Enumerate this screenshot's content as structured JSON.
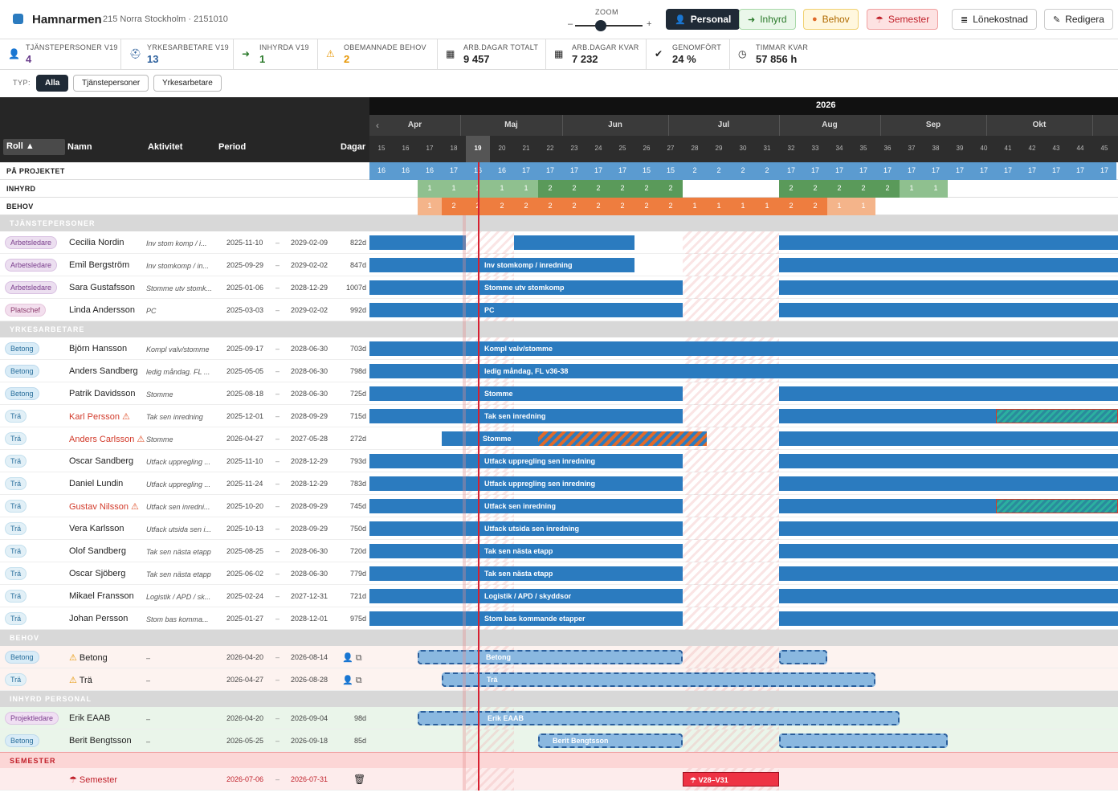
{
  "app": {
    "title": "Hamnarmen",
    "subtitle": "215 Norra Stockholm · 2151010"
  },
  "zoom": {
    "label": "ZOOM",
    "minus": "–",
    "plus": "+"
  },
  "toolbar": {
    "personal": "Personal",
    "inhyrd": "Inhyrd",
    "behov": "Behov",
    "semester": "Semester",
    "lonekostnad": "Lönekostnad",
    "redigera": "Redigera"
  },
  "stats": [
    {
      "label": "TJÄNSTEPERSONER V19",
      "value": "4",
      "icon": "person-icon"
    },
    {
      "label": "YRKESARBETARE V19",
      "value": "13",
      "icon": "hardhat-icon"
    },
    {
      "label": "INHYRDA V19",
      "value": "1",
      "icon": "sign-in-icon"
    },
    {
      "label": "OBEMANNADE BEHOV",
      "value": "2",
      "icon": "warning-icon"
    },
    {
      "label": "ARB.DAGAR TOTALT",
      "value": "9 457",
      "icon": "calendar-icon"
    },
    {
      "label": "ARB.DAGAR KVAR",
      "value": "7 232",
      "icon": "calendar-icon"
    },
    {
      "label": "GENOMFÖRT",
      "value": "24 %",
      "icon": "check-circle-icon"
    },
    {
      "label": "TIMMAR KVAR",
      "value": "57 856 h",
      "icon": "clock-icon"
    }
  ],
  "filter": {
    "label": "TYP:",
    "options": [
      "Alla",
      "Tjänstepersoner",
      "Yrkesarbetare"
    ],
    "active": "Alla"
  },
  "columns": {
    "roll": "Roll ▲",
    "namn": "Namn",
    "aktivitet": "Aktivitet",
    "period": "Period",
    "dagar": "Dagar"
  },
  "year": "2026",
  "months": [
    "Apr",
    "Maj",
    "Jun",
    "Jul",
    "Aug",
    "Sep",
    "Okt"
  ],
  "weeks": [
    "15",
    "16",
    "17",
    "18",
    "19",
    "20",
    "21",
    "22",
    "23",
    "24",
    "25",
    "26",
    "27",
    "28",
    "29",
    "30",
    "31",
    "32",
    "33",
    "34",
    "35",
    "36",
    "37",
    "38",
    "39",
    "40",
    "41",
    "42",
    "43",
    "44",
    "45"
  ],
  "current_week": "19",
  "summary": {
    "pa_projektet": {
      "label": "PÅ PROJEKTET",
      "values": [
        "16",
        "16",
        "16",
        "17",
        "16",
        "16",
        "17",
        "17",
        "17",
        "17",
        "17",
        "15",
        "15",
        "2",
        "2",
        "2",
        "2",
        "17",
        "17",
        "17",
        "17",
        "17",
        "17",
        "17",
        "17",
        "17",
        "17",
        "17",
        "17",
        "17",
        "17"
      ]
    },
    "inhyrd": {
      "label": "INHYRD",
      "values": [
        "",
        "",
        "1",
        "1",
        "1",
        "1",
        "1",
        "2",
        "2",
        "2",
        "2",
        "2",
        "2",
        "",
        "",
        "",
        "",
        "2",
        "2",
        "2",
        "2",
        "2",
        "1",
        "1",
        "",
        "",
        "",
        "",
        "",
        "",
        ""
      ]
    },
    "behov": {
      "label": "BEHOV",
      "values": [
        "",
        "",
        "1",
        "2",
        "2",
        "2",
        "2",
        "2",
        "2",
        "2",
        "2",
        "2",
        "2",
        "1",
        "1",
        "1",
        "1",
        "2",
        "2",
        "1",
        "1",
        "",
        "",
        "",
        "",
        "",
        "",
        "",
        "",
        "",
        ""
      ]
    }
  },
  "sections": {
    "tjanstepersoner": "TJÄNSTEPERSONER",
    "yrkesarbetare": "YRKESARBETARE",
    "behov": "BEHOV",
    "inhyrd": "INHYRD PERSONAL",
    "semester": "SEMESTER"
  },
  "tjanstepersoner": [
    {
      "roll": "Arbetsledare",
      "namn": "Cecilia Nordin",
      "aktivitet": "Inv stom komp / i...",
      "start": "2025-11-10",
      "end": "2029-02-09",
      "dagar": "822d",
      "bar_label": ""
    },
    {
      "roll": "Arbetsledare",
      "namn": "Emil Bergström",
      "aktivitet": "Inv stomkomp / in...",
      "start": "2025-09-29",
      "end": "2029-02-02",
      "dagar": "847d",
      "bar_label": "Inv stomkomp / inredning"
    },
    {
      "roll": "Arbetsledare",
      "namn": "Sara Gustafsson",
      "aktivitet": "Stomme utv stomk...",
      "start": "2025-01-06",
      "end": "2028-12-29",
      "dagar": "1007d",
      "bar_label": "Stomme utv stomkomp"
    },
    {
      "roll": "Platschef",
      "namn": "Linda Andersson",
      "aktivitet": "PC",
      "start": "2025-03-03",
      "end": "2029-02-02",
      "dagar": "992d",
      "bar_label": "PC"
    }
  ],
  "yrkesarbetare": [
    {
      "roll": "Betong",
      "namn": "Björn Hansson",
      "aktivitet": "Kompl valv/stomme",
      "start": "2025-09-17",
      "end": "2028-06-30",
      "dagar": "703d",
      "bar_label": "Kompl valv/stomme"
    },
    {
      "roll": "Betong",
      "namn": "Anders Sandberg",
      "aktivitet": "ledig måndag. FL ...",
      "start": "2025-05-05",
      "end": "2028-06-30",
      "dagar": "798d",
      "bar_label": "ledig måndag, FL v36-38"
    },
    {
      "roll": "Betong",
      "namn": "Patrik Davidsson",
      "aktivitet": "Stomme",
      "start": "2025-08-18",
      "end": "2028-06-30",
      "dagar": "725d",
      "bar_label": "Stomme"
    },
    {
      "roll": "Trä",
      "namn": "Karl Persson",
      "aktivitet": "Tak sen inredning",
      "start": "2025-12-01",
      "end": "2028-09-29",
      "dagar": "715d",
      "bar_label": "Tak sen inredning",
      "warn": true
    },
    {
      "roll": "Trä",
      "namn": "Anders Carlsson",
      "aktivitet": "Stomme",
      "start": "2026-04-27",
      "end": "2027-05-28",
      "dagar": "272d",
      "bar_label": "Stomme",
      "warn": true
    },
    {
      "roll": "Trä",
      "namn": "Oscar Sandberg",
      "aktivitet": "Utfack uppregling ...",
      "start": "2025-11-10",
      "end": "2028-12-29",
      "dagar": "793d",
      "bar_label": "Utfack uppregling sen inredning"
    },
    {
      "roll": "Trä",
      "namn": "Daniel Lundin",
      "aktivitet": "Utfack uppregling ...",
      "start": "2025-11-24",
      "end": "2028-12-29",
      "dagar": "783d",
      "bar_label": "Utfack uppregling sen inredning"
    },
    {
      "roll": "Trä",
      "namn": "Gustav Nilsson",
      "aktivitet": "Utfack sen inredni...",
      "start": "2025-10-20",
      "end": "2028-09-29",
      "dagar": "745d",
      "bar_label": "Utfack sen inredning",
      "warn": true
    },
    {
      "roll": "Trä",
      "namn": "Vera Karlsson",
      "aktivitet": "Utfack utsida sen i...",
      "start": "2025-10-13",
      "end": "2028-09-29",
      "dagar": "750d",
      "bar_label": "Utfack utsida sen inredning"
    },
    {
      "roll": "Trä",
      "namn": "Olof Sandberg",
      "aktivitet": "Tak sen nästa etapp",
      "start": "2025-08-25",
      "end": "2028-06-30",
      "dagar": "720d",
      "bar_label": "Tak sen nästa etapp"
    },
    {
      "roll": "Trä",
      "namn": "Oscar Sjöberg",
      "aktivitet": "Tak sen nästa etapp",
      "start": "2025-06-02",
      "end": "2028-06-30",
      "dagar": "779d",
      "bar_label": "Tak sen nästa etapp"
    },
    {
      "roll": "Trä",
      "namn": "Mikael Fransson",
      "aktivitet": "Logistik / APD / sk...",
      "start": "2025-02-24",
      "end": "2027-12-31",
      "dagar": "721d",
      "bar_label": "Logistik / APD / skyddsor"
    },
    {
      "roll": "Trä",
      "namn": "Johan Persson",
      "aktivitet": "Stom bas komma...",
      "start": "2025-01-27",
      "end": "2028-12-01",
      "dagar": "975d",
      "bar_label": "Stom bas kommande etapper"
    }
  ],
  "behov": [
    {
      "roll": "Betong",
      "namn": "Betong",
      "aktivitet": "–",
      "start": "2026-04-20",
      "end": "2026-08-14",
      "bar_label": "Betong"
    },
    {
      "roll": "Trä",
      "namn": "Trä",
      "aktivitet": "–",
      "start": "2026-04-27",
      "end": "2026-08-28",
      "bar_label": "Trä"
    }
  ],
  "inhyrd": [
    {
      "roll": "Projektledare",
      "namn": "Erik EAAB",
      "aktivitet": "–",
      "start": "2026-04-20",
      "end": "2026-09-04",
      "dagar": "98d",
      "bar_label": "Erik EAAB"
    },
    {
      "roll": "Betong",
      "namn": "Berit Bengtsson",
      "aktivitet": "–",
      "start": "2026-05-25",
      "end": "2026-09-18",
      "dagar": "85d",
      "bar_label": "Berit Bengtsson"
    }
  ],
  "semester": {
    "namn": "Semester",
    "start": "2026-07-06",
    "end": "2026-07-31",
    "bar_label": "V28–V31"
  },
  "colors": {
    "accent": "#2b7bbf",
    "today": "#d62030",
    "inhyrd_green": "#6aa66a",
    "behov_orange": "#ef8a4a",
    "semester_red": "#ee3344"
  }
}
